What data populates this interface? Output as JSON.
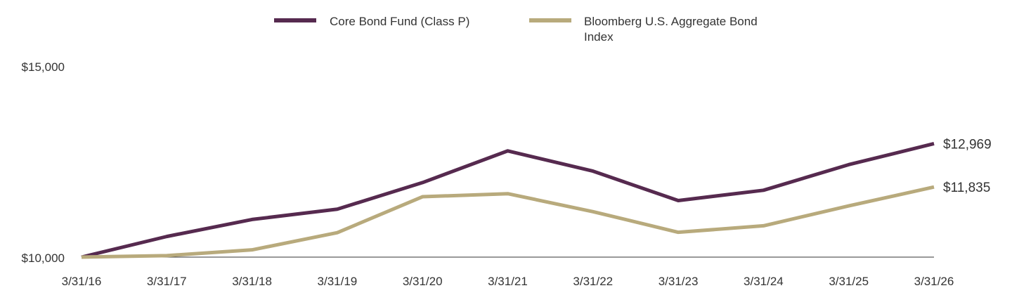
{
  "chart_data": {
    "type": "line",
    "title": "",
    "xlabel": "",
    "ylabel": "",
    "categories": [
      "3/31/16",
      "3/31/17",
      "3/31/18",
      "3/31/19",
      "3/31/20",
      "3/31/21",
      "3/31/22",
      "3/31/23",
      "3/31/24",
      "3/31/25",
      "3/31/26"
    ],
    "ylim": [
      10000,
      15000
    ],
    "yticks": [
      10000,
      15000
    ],
    "ytick_labels": [
      "$10,000",
      "$15,000"
    ],
    "grid": false,
    "legend_position": "top-center",
    "series": [
      {
        "name": "Core Bond Fund (Class P)",
        "color": "#562a4f",
        "values": [
          10000,
          10540,
          10985,
          11255,
          11950,
          12780,
          12250,
          11480,
          11750,
          12420,
          12969
        ],
        "end_label": "$12,969"
      },
      {
        "name": "Bloomberg U.S. Aggregate Bond Index",
        "color": "#b8aa7c",
        "values": [
          10000,
          10040,
          10190,
          10640,
          11580,
          11660,
          11190,
          10650,
          10820,
          11340,
          11835
        ],
        "end_label": "$11,835"
      }
    ]
  }
}
